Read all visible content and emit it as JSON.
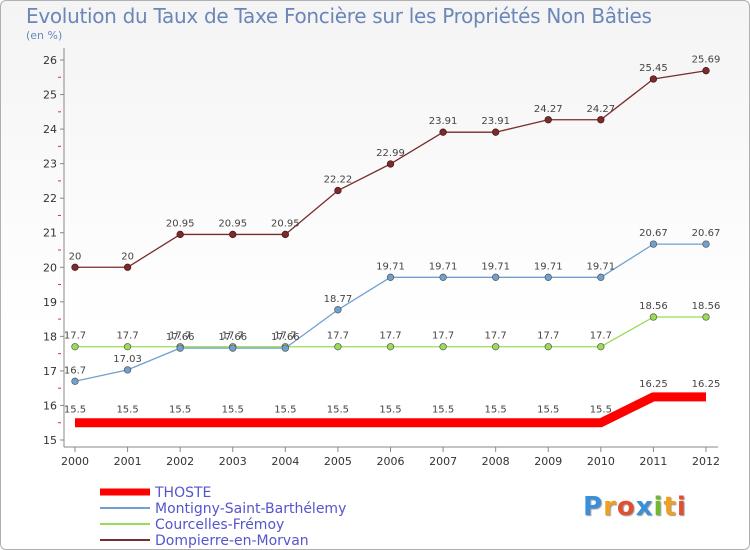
{
  "chart_data": {
    "type": "line",
    "title": "Evolution du Taux de Taxe Foncière sur les Propriétés Non Bâties",
    "subtitle": "(en %)",
    "x": [
      2000,
      2001,
      2002,
      2003,
      2004,
      2005,
      2006,
      2007,
      2008,
      2009,
      2010,
      2011,
      2012
    ],
    "ylim": [
      15,
      26
    ],
    "yticks": [
      15,
      16,
      17,
      18,
      19,
      20,
      21,
      22,
      23,
      24,
      25,
      26
    ],
    "grid": false,
    "legend": "bottom-left",
    "series": [
      {
        "name": "THOSTE",
        "color": "#ff0000",
        "values": [
          15.5,
          15.5,
          15.5,
          15.5,
          15.5,
          15.5,
          15.5,
          15.5,
          15.5,
          15.5,
          15.5,
          16.25,
          16.25
        ],
        "labels": [
          "15.5",
          "15.5",
          "15.5",
          "15.5",
          "15.5",
          "15.5",
          "15.5",
          "15.5",
          "15.5",
          "15.5",
          "15.5",
          "16.25",
          "16.25"
        ]
      },
      {
        "name": "Montigny-Saint-Barthélemy",
        "color": "#6fa0d0",
        "values": [
          16.7,
          17.03,
          17.66,
          17.66,
          17.66,
          18.77,
          19.71,
          19.71,
          19.71,
          19.71,
          19.71,
          20.67,
          20.67
        ],
        "labels": [
          "16.7",
          "17.03",
          "17.66",
          "17.66",
          "17.66",
          "18.77",
          "19.71",
          "19.71",
          "19.71",
          "19.71",
          "19.71",
          "20.67",
          "20.67"
        ]
      },
      {
        "name": "Courcelles-Frémoy",
        "color": "#99dd55",
        "values": [
          17.7,
          17.7,
          17.7,
          17.7,
          17.7,
          17.7,
          17.7,
          17.7,
          17.7,
          17.7,
          17.7,
          18.56,
          18.56
        ],
        "labels": [
          "17.7",
          "17.7",
          "17.7",
          "17.7",
          "17.7",
          "17.7",
          "17.7",
          "17.7",
          "17.7",
          "17.7",
          "17.7",
          "18.56",
          "18.56"
        ]
      },
      {
        "name": "Dompierre-en-Morvan",
        "color": "#7a2b2b",
        "values": [
          20,
          20,
          20.95,
          20.95,
          20.95,
          22.22,
          22.99,
          23.91,
          23.91,
          24.27,
          24.27,
          25.45,
          25.69
        ],
        "labels": [
          "20",
          "20",
          "20.95",
          "20.95",
          "20.95",
          "22.22",
          "22.99",
          "23.91",
          "23.91",
          "24.27",
          "24.27",
          "25.45",
          "25.69"
        ]
      }
    ]
  },
  "brand": {
    "letters": [
      "P",
      "r",
      "o",
      "x",
      "i",
      "t",
      "i"
    ],
    "colors": [
      "#3a8fd8",
      "#f0a020",
      "#e05030",
      "#3a8fd8",
      "#70b830",
      "#f0a020",
      "#e05030"
    ]
  }
}
